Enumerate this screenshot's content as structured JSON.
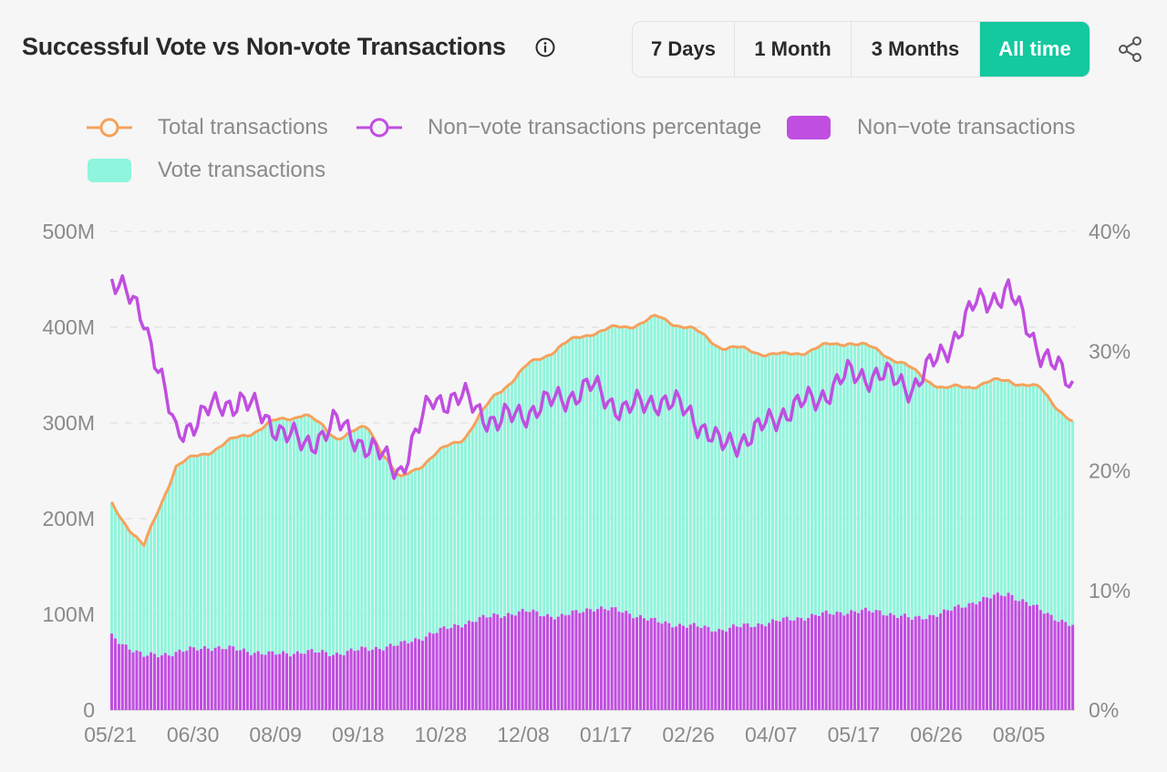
{
  "header": {
    "title": "Successful Vote vs Non-vote Transactions",
    "ranges": [
      "7 Days",
      "1 Month",
      "3 Months",
      "All time"
    ],
    "active_range": "All time"
  },
  "legend": {
    "total": "Total transactions",
    "pct": "Non−vote transactions percentage",
    "nonvote": "Non−vote transactions",
    "vote": "Vote transactions"
  },
  "colors": {
    "total": "#f5a25d",
    "pct": "#c04ee0",
    "nonvote": "#c04ee0",
    "vote": "#8ff5dc",
    "active": "#14c8a0"
  },
  "chart_data": {
    "type": "bar",
    "stacked": true,
    "x_labels": [
      "05/21",
      "06/30",
      "08/09",
      "09/18",
      "10/28",
      "12/08",
      "01/17",
      "02/26",
      "04/07",
      "05/17",
      "06/26",
      "08/05"
    ],
    "y_left_ticks": [
      "0",
      "100M",
      "200M",
      "300M",
      "400M",
      "500M"
    ],
    "y_right_ticks": [
      "0%",
      "10%",
      "20%",
      "30%",
      "40%"
    ],
    "y_left_range": [
      0,
      500
    ],
    "y_left_unit": "M",
    "y_right_range": [
      0,
      40
    ],
    "y_right_unit": "%",
    "grid": "horizontal dashed",
    "legend_position": "top",
    "series": [
      {
        "name": "Total transactions",
        "type": "line",
        "axis": "left",
        "values": [
          215,
          170,
          255,
          270,
          285,
          300,
          310,
          285,
          295,
          240,
          265,
          285,
          330,
          360,
          380,
          395,
          400,
          410,
          400,
          380,
          375,
          370,
          378,
          385,
          375,
          355,
          335,
          340,
          345,
          335,
          300
        ]
      },
      {
        "name": "Non-vote transactions percentage",
        "type": "line",
        "axis": "right",
        "values": [
          36,
          33,
          23,
          25,
          26,
          24,
          22,
          24,
          22,
          20,
          26,
          26,
          24,
          25,
          26,
          27,
          25,
          26,
          25,
          22,
          23,
          25,
          26,
          28,
          28,
          27,
          30,
          34,
          35,
          30,
          27
        ]
      },
      {
        "name": "Non-vote transactions",
        "type": "bar",
        "axis": "left",
        "values": [
          77,
          56,
          60,
          66,
          63,
          58,
          61,
          59,
          64,
          68,
          80,
          91,
          99,
          103,
          97,
          107,
          103,
          92,
          88,
          84,
          89,
          94,
          99,
          103,
          103,
          95,
          102,
          114,
          122,
          104,
          88
        ]
      },
      {
        "name": "Vote transactions",
        "type": "bar",
        "axis": "left",
        "values": [
          138,
          114,
          195,
          204,
          222,
          242,
          249,
          226,
          231,
          172,
          185,
          194,
          231,
          257,
          283,
          288,
          297,
          318,
          312,
          296,
          286,
          276,
          279,
          282,
          272,
          260,
          233,
          226,
          223,
          231,
          212
        ]
      }
    ]
  }
}
